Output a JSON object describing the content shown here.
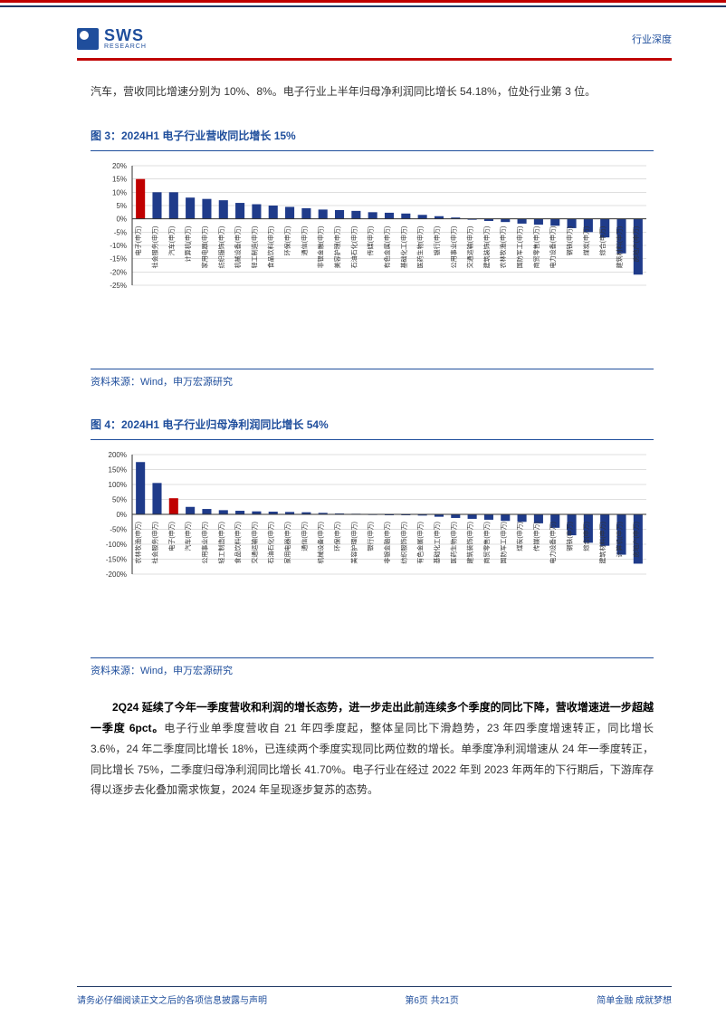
{
  "header": {
    "logo_brand": "SWS",
    "logo_sub": "RESEARCH",
    "right_label": "行业深度"
  },
  "intro_para": "汽车，营收同比增速分别为 10%、8%。电子行业上半年归母净利润同比增长 54.18%，位处行业第 3 位。",
  "chart3": {
    "title": "图 3：2024H1 电子行业营收同比增长 15%",
    "type": "bar",
    "source": "资料来源：Wind，申万宏源研究",
    "ylabel_format": "pct",
    "ylim": [
      -25,
      20
    ],
    "ytick_step": 5,
    "axis_color": "#333333",
    "grid_color": "#bfbfbf",
    "tick_fontsize": 8,
    "label_fontsize": 7,
    "background_color": "#ffffff",
    "bar_color_default": "#1f3b8a",
    "bar_color_highlight": "#c00000",
    "highlight_index": 0,
    "categories": [
      "电子(申万)",
      "社会服务(申万)",
      "汽车(申万)",
      "计算机(申万)",
      "家用电器(申万)",
      "纺织服饰(申万)",
      "机械设备(申万)",
      "轻工制造(申万)",
      "食品饮料(申万)",
      "环保(申万)",
      "通信(申万)",
      "非银金融(申万)",
      "美容护理(申万)",
      "石油石化(申万)",
      "传媒(申万)",
      "有色金属(申万)",
      "基础化工(申万)",
      "医药生物(申万)",
      "银行(申万)",
      "公用事业(申万)",
      "交通运输(申万)",
      "建筑装饰(申万)",
      "农林牧渔(申万)",
      "国防军工(申万)",
      "商贸零售(申万)",
      "电力设备(申万)",
      "钢铁(申万)",
      "煤炭(申万)",
      "综合(申万)",
      "建筑材料(申万)",
      "房地产(申万)"
    ],
    "values": [
      15,
      10,
      10,
      8,
      7.5,
      7,
      6,
      5.5,
      5,
      4.5,
      4,
      3.5,
      3.3,
      3,
      2.5,
      2.3,
      2,
      1.5,
      1,
      0.5,
      -0.3,
      -0.8,
      -1.2,
      -1.8,
      -2.2,
      -2.6,
      -3.5,
      -5,
      -7,
      -13,
      -21
    ]
  },
  "chart4": {
    "title": "图 4：2024H1 电子行业归母净利润同比增长 54%",
    "type": "bar",
    "source": "资料来源：Wind，申万宏源研究",
    "ylabel_format": "pct",
    "ylim": [
      -200,
      200
    ],
    "ytick_step": 50,
    "axis_color": "#333333",
    "grid_color": "#bfbfbf",
    "tick_fontsize": 8,
    "label_fontsize": 7,
    "background_color": "#ffffff",
    "bar_color_default": "#1f3b8a",
    "bar_color_highlight": "#c00000",
    "highlight_index": 2,
    "categories": [
      "农林牧渔(申万)",
      "社会服务(申万)",
      "电子(申万)",
      "汽车(申万)",
      "公用事业(申万)",
      "轻工制造(申万)",
      "食品饮料(申万)",
      "交通运输(申万)",
      "石油石化(申万)",
      "家用电器(申万)",
      "通信(申万)",
      "机械设备(申万)",
      "环保(申万)",
      "美容护理(申万)",
      "银行(申万)",
      "非银金融(申万)",
      "纺织服饰(申万)",
      "有色金属(申万)",
      "基础化工(申万)",
      "医药生物(申万)",
      "建筑装饰(申万)",
      "商贸零售(申万)",
      "国防军工(申万)",
      "煤炭(申万)",
      "传媒(申万)",
      "电力设备(申万)",
      "钢铁(申万)",
      "综合(申万)",
      "建筑材料(申万)",
      "计算机(申万)",
      "房地产(申万)"
    ],
    "values": [
      175,
      105,
      54,
      25,
      18,
      14,
      12,
      10,
      9,
      8,
      7,
      5,
      3,
      2,
      1,
      0,
      -2,
      -4,
      -8,
      -12,
      -15,
      -18,
      -22,
      -25,
      -30,
      -45,
      -70,
      -95,
      -105,
      -135,
      -165
    ]
  },
  "closing_para": {
    "bold_lead": "2Q24 延续了今年一季度营收和利润的增长态势，进一步走出此前连续多个季度的同比下降，营收增速进一步超越一季度 6pct。",
    "rest": "电子行业单季度营收自 21 年四季度起，整体呈同比下滑趋势，23 年四季度增速转正，同比增长 3.6%，24 年二季度同比增长 18%，已连续两个季度实现同比两位数的增长。单季度净利润增速从 24 年一季度转正，同比增长 75%，二季度归母净利润同比增长 41.70%。电子行业在经过 2022 年到 2023 年两年的下行期后，下游库存得以逐步去化叠加需求恢复，2024 年呈现逐步复苏的态势。"
  },
  "footer": {
    "left": "请务必仔细阅读正文之后的各项信息披露与声明",
    "center": "第6页 共21页",
    "right": "简单金融 成就梦想"
  },
  "colors": {
    "brand_blue": "#1f4e9c",
    "dark_navy": "#1f3864",
    "top_red": "#c00000",
    "text": "#333333"
  }
}
